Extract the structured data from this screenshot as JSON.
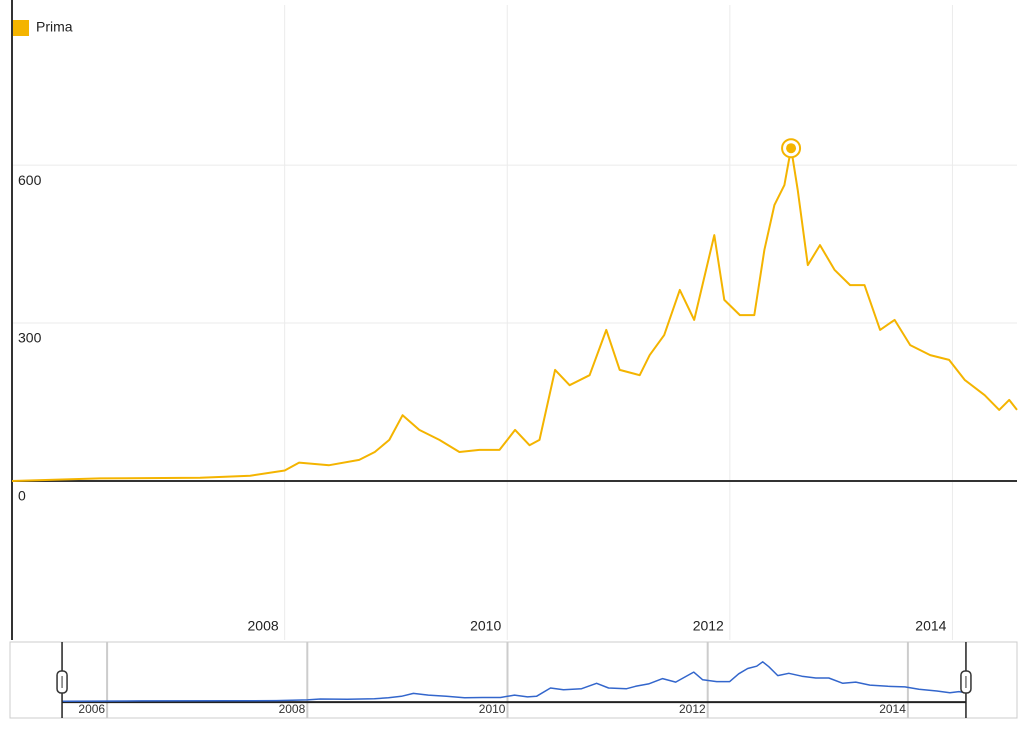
{
  "chart_data": {
    "type": "line",
    "x": [
      2005.55,
      2006.34,
      2007.24,
      2007.69,
      2008.0,
      2008.13,
      2008.4,
      2008.67,
      2008.81,
      2008.94,
      2009.06,
      2009.21,
      2009.39,
      2009.57,
      2009.75,
      2009.93,
      2010.07,
      2010.2,
      2010.29,
      2010.43,
      2010.56,
      2010.74,
      2010.89,
      2011.01,
      2011.19,
      2011.28,
      2011.41,
      2011.55,
      2011.68,
      2011.86,
      2011.95,
      2012.09,
      2012.22,
      2012.31,
      2012.4,
      2012.49,
      2012.55,
      2012.61,
      2012.7,
      2012.81,
      2012.94,
      2013.08,
      2013.21,
      2013.35,
      2013.48,
      2013.62,
      2013.8,
      2013.97,
      2014.11,
      2014.29,
      2014.42,
      2014.51,
      2014.58
    ],
    "series": [
      {
        "name": "Prima",
        "color": "#f4b400",
        "values": [
          0,
          5,
          6,
          10,
          20,
          35,
          30,
          40,
          55,
          78,
          125,
          97,
          78,
          55,
          59,
          59,
          97,
          68,
          78,
          211,
          182,
          201,
          287,
          211,
          201,
          239,
          277,
          363,
          306,
          467,
          344,
          315,
          315,
          439,
          524,
          562,
          632,
          553,
          410,
          448,
          401,
          372,
          372,
          287,
          306,
          258,
          239,
          230,
          192,
          163,
          135,
          154,
          135
        ]
      }
    ],
    "xlim": [
      2005.55,
      2014.58
    ],
    "xticks": [
      2008,
      2010,
      2012,
      2014
    ],
    "ylim": [
      -302,
      904
    ],
    "yticks": [
      0,
      300,
      600
    ],
    "grid": true,
    "legend": "top-left",
    "navigator": {
      "color": "#3366cc",
      "xlim": [
        2005.03,
        2015.09
      ],
      "ylim": [
        -270,
        950
      ],
      "xticks": [
        2006,
        2008,
        2010,
        2012,
        2014
      ]
    }
  }
}
